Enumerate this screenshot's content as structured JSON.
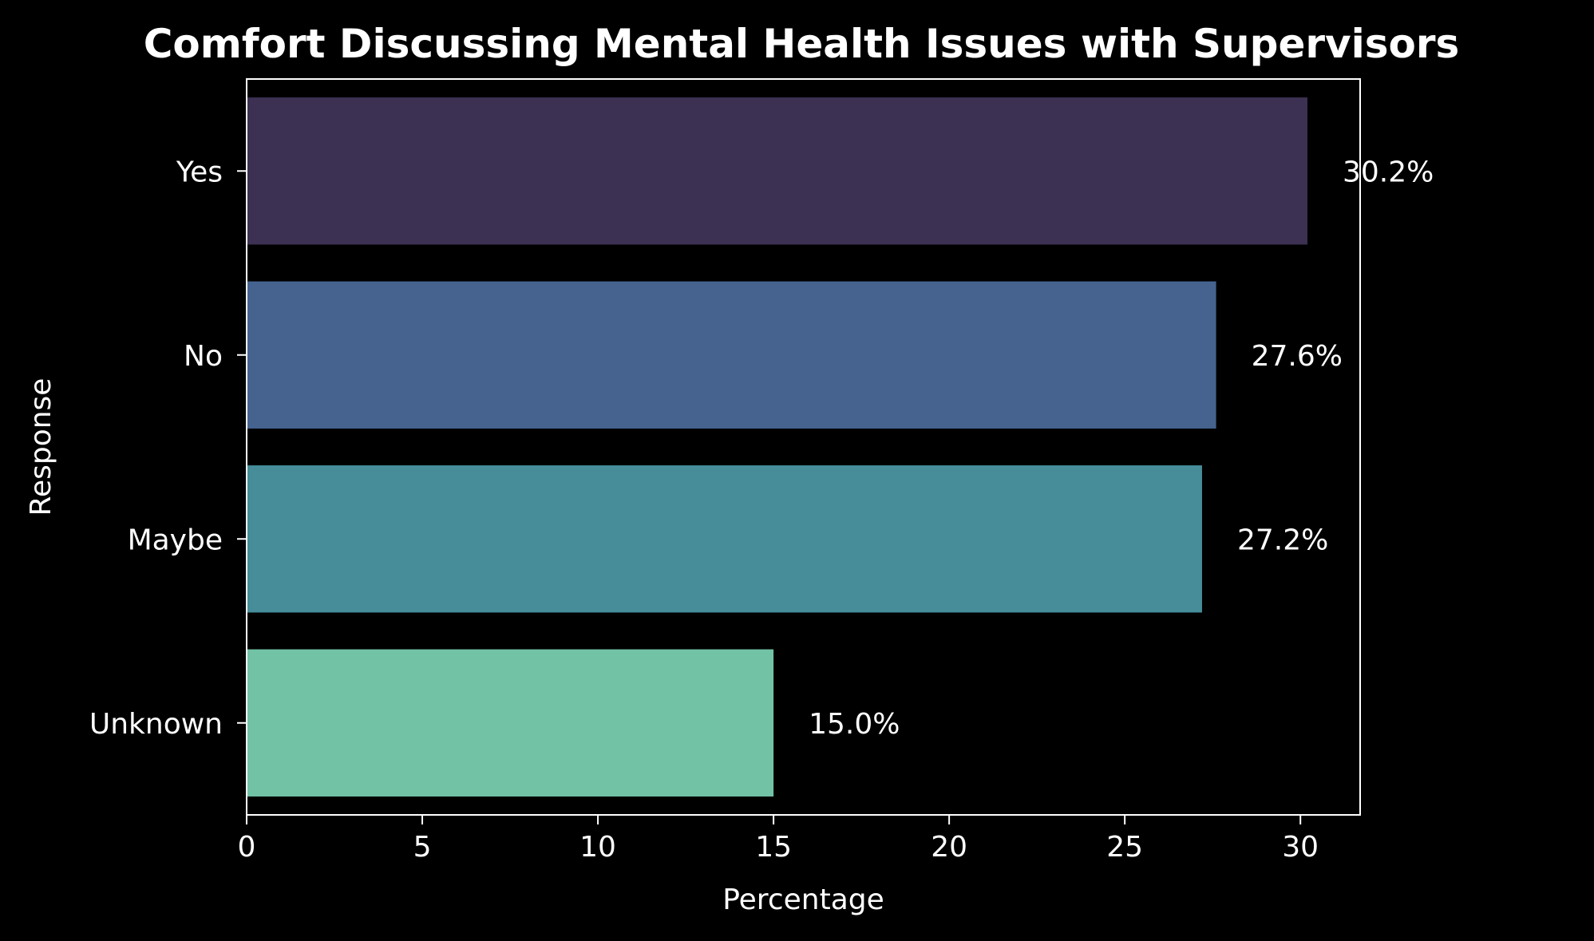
{
  "chart_data": {
    "type": "bar",
    "orientation": "horizontal",
    "title": "Comfort Discussing Mental Health Issues with Supervisors",
    "xlabel": "Percentage",
    "ylabel": "Response",
    "categories": [
      "Yes",
      "No",
      "Maybe",
      "Unknown"
    ],
    "values": [
      30.2,
      27.6,
      27.2,
      15.0
    ],
    "data_labels": [
      "30.2%",
      "27.6%",
      "27.2%",
      "15.0%"
    ],
    "bar_colors": [
      "#3c3152",
      "#466390",
      "#468c99",
      "#72c2a6"
    ],
    "xlim": [
      0,
      31.7
    ],
    "xticks": [
      0,
      5,
      10,
      15,
      20,
      25,
      30
    ],
    "xtick_labels": [
      "0",
      "5",
      "10",
      "15",
      "20",
      "25",
      "30"
    ],
    "background": "#000000",
    "foreground": "#ffffff",
    "grid": false,
    "legend": "none"
  }
}
